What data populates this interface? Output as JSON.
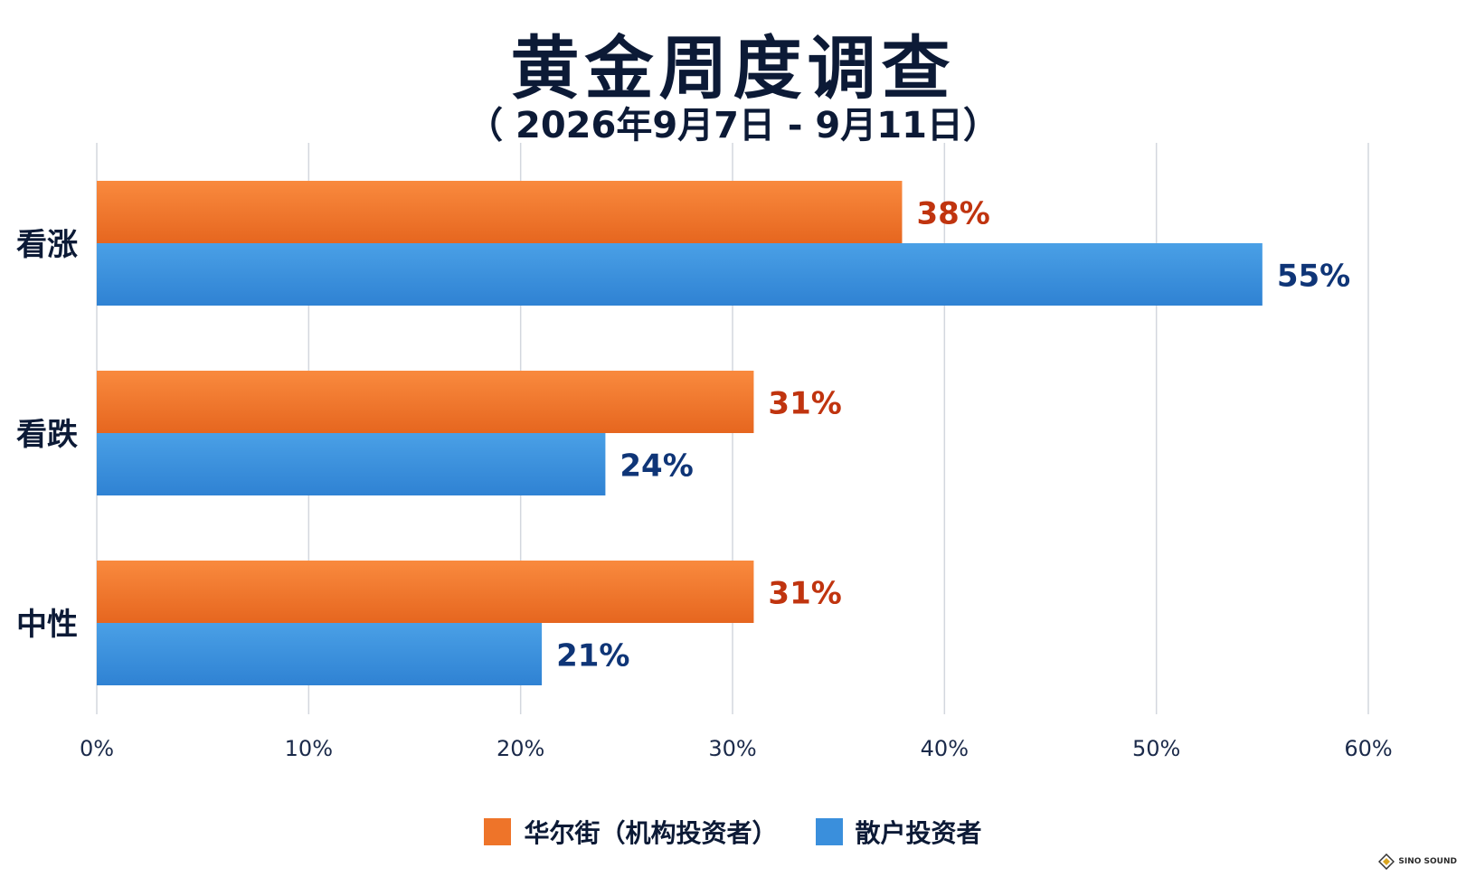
{
  "header": {
    "title": "黄金周度调查",
    "subtitle": "（ 2026年9月7日 - 9月11日）"
  },
  "colors": {
    "orange": "#ee7429",
    "blue": "#3a8fdc",
    "orange_label": "#c0340f",
    "blue_label": "#0f3577",
    "grid": "#d3d7de"
  },
  "chart_data": {
    "type": "bar",
    "orientation": "horizontal",
    "title": "黄金周度调查",
    "subtitle": "（ 2026年9月7日 - 9月11日）",
    "categories": [
      "看涨",
      "看跌",
      "中性"
    ],
    "series": [
      {
        "name": "华尔街（机构投资者）",
        "values": [
          38,
          31,
          31
        ],
        "labels": [
          "38%",
          "31%",
          "31%"
        ]
      },
      {
        "name": "散户投资者",
        "values": [
          55,
          24,
          21
        ],
        "labels": [
          "55%",
          "24%",
          "21%"
        ]
      }
    ],
    "xlim": [
      0,
      60
    ],
    "xticks": [
      0,
      10,
      20,
      30,
      40,
      50,
      60
    ],
    "xtick_labels": [
      "0%",
      "10%",
      "20%",
      "30%",
      "40%",
      "50%",
      "60%"
    ],
    "grid": true,
    "legend_position": "bottom"
  },
  "legend": {
    "items": [
      {
        "label": "华尔街（机构投资者）"
      },
      {
        "label": "散户投资者"
      }
    ]
  },
  "watermark": {
    "text": "SINO SOUND",
    "icon": "diamond-logo-icon"
  }
}
